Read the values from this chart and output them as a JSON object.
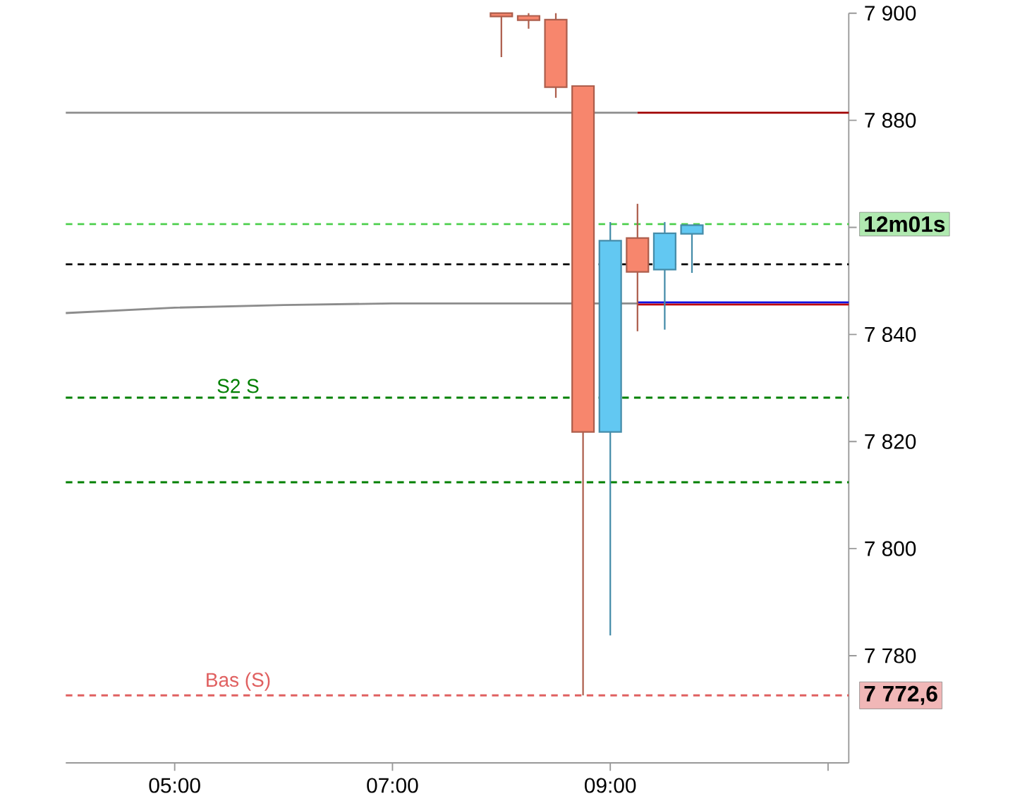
{
  "chart_data": {
    "type": "candlestick",
    "x": [
      8.0,
      8.25,
      8.5,
      8.75,
      9.0,
      9.25,
      9.5,
      9.75
    ],
    "ohlc": [
      [
        7900,
        7900,
        7891.8,
        7899.4
      ],
      [
        7899.5,
        7900,
        7897.1,
        7898.7
      ],
      [
        7898.8,
        7900,
        7884.2,
        7886.2
      ],
      [
        7886.4,
        7886.4,
        7772.6,
        7821.8
      ],
      [
        7821.8,
        7861.0,
        7783.8,
        7857.5
      ],
      [
        7858.0,
        7864.4,
        7840.6,
        7851.7
      ],
      [
        7852.1,
        7861.0,
        7840.9,
        7858.9
      ],
      [
        7858.8,
        7860.4,
        7851.5,
        7860.4
      ]
    ],
    "colors": [
      "#f7866d",
      "#f7866d",
      "#f7866d",
      "#f7866d",
      "#62c8f2",
      "#f7866d",
      "#62c8f2",
      "#62c8f2"
    ],
    "series": [
      {
        "type": "line",
        "color": "#8c8c8c",
        "x": [
          4.0,
          9.25
        ],
        "values": [
          7881.4,
          7881.4
        ]
      },
      {
        "type": "line",
        "color": "#8c8c8c",
        "x": [
          4.0,
          5.0,
          6.0,
          7.0,
          8.0,
          9.25
        ],
        "values": [
          7844.0,
          7845.0,
          7845.5,
          7845.8,
          7845.8,
          7845.8
        ]
      },
      {
        "type": "line",
        "color": "#a00000",
        "x": [
          9.25,
          11.19
        ],
        "values": [
          7881.4,
          7881.4
        ]
      },
      {
        "type": "line",
        "color": "#c00000",
        "x": [
          9.25,
          11.19
        ],
        "values": [
          7845.6,
          7845.6
        ]
      },
      {
        "type": "line",
        "color": "#1010e0",
        "x": [
          9.25,
          11.19
        ],
        "values": [
          7846.0,
          7846.0
        ]
      }
    ],
    "xlim": [
      4.0,
      11.19
    ],
    "xticks": [
      {
        "value": 5,
        "label": "05:00"
      },
      {
        "value": 7,
        "label": "07:00"
      },
      {
        "value": 9,
        "label": "09:00"
      },
      {
        "value": 11,
        "label": null
      }
    ],
    "ylim": [
      7760,
      7900
    ],
    "yticks": [
      {
        "value": 7780,
        "label": "7 780"
      },
      {
        "value": 7800,
        "label": "7 800"
      },
      {
        "value": 7820,
        "label": "7 820"
      },
      {
        "value": 7840,
        "label": "7 840"
      },
      {
        "value": 7860,
        "label": null
      },
      {
        "value": 7880,
        "label": "7 880"
      },
      {
        "value": 7900,
        "label": "7 900"
      }
    ],
    "ref_lines": [
      {
        "axis": "y",
        "value": 7860.6,
        "color": "#4fcf4f",
        "line_style": "dashed"
      },
      {
        "axis": "y",
        "value": 7772.6,
        "color": "#e06060",
        "line_style": "dashed",
        "label": "Bas (S)"
      },
      {
        "axis": "y",
        "value": 7853.1,
        "color": "#000000",
        "line_style": "dashed"
      },
      {
        "axis": "y",
        "value": 7828.2,
        "color": "#008000",
        "line_style": "dashed",
        "label": "S2 S"
      },
      {
        "axis": "y",
        "value": 7812.4,
        "color": "#008000",
        "line_style": "dashed"
      }
    ],
    "annotations": [
      "12m01s",
      "7 772,6"
    ]
  }
}
